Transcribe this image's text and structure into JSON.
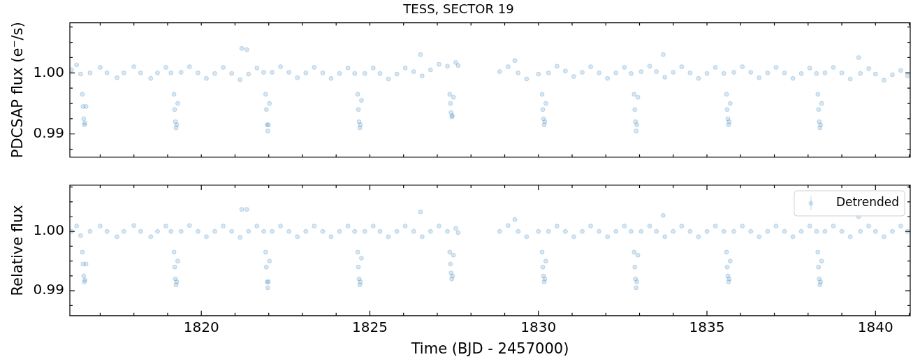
{
  "chart_data": [
    {
      "type": "scatter",
      "title": "TESS, SECTOR 19",
      "ylabel": "PDCSAP flux (e⁻/s)",
      "marker": "circle",
      "tick_labels": "y",
      "xlim": [
        1816.1,
        1841.03
      ],
      "xticks": [
        {
          "value": 1817,
          "label": null
        },
        {
          "value": 1818,
          "label": null
        },
        {
          "value": 1819,
          "label": null
        },
        {
          "value": 1820,
          "label": null
        },
        {
          "value": 1821,
          "label": null
        },
        {
          "value": 1822,
          "label": null
        },
        {
          "value": 1823,
          "label": null
        },
        {
          "value": 1824,
          "label": null
        },
        {
          "value": 1825,
          "label": null
        },
        {
          "value": 1826,
          "label": null
        },
        {
          "value": 1827,
          "label": null
        },
        {
          "value": 1828,
          "label": null
        },
        {
          "value": 1829,
          "label": null
        },
        {
          "value": 1830,
          "label": null
        },
        {
          "value": 1831,
          "label": null
        },
        {
          "value": 1832,
          "label": null
        },
        {
          "value": 1833,
          "label": null
        },
        {
          "value": 1834,
          "label": null
        },
        {
          "value": 1835,
          "label": null
        },
        {
          "value": 1836,
          "label": null
        },
        {
          "value": 1837,
          "label": null
        },
        {
          "value": 1838,
          "label": null
        },
        {
          "value": 1839,
          "label": null
        },
        {
          "value": 1840,
          "label": null
        },
        {
          "value": 1841,
          "label": null
        }
      ],
      "ylim": [
        0.9862,
        1.0082
      ],
      "yticks": [
        {
          "value": 0.9875,
          "label": null
        },
        0.99,
        {
          "value": 0.9925,
          "label": null
        },
        {
          "value": 0.995,
          "label": null
        },
        {
          "value": 0.9975,
          "label": null
        },
        {
          "value": 1,
          "label": "1.00"
        },
        {
          "value": 1.0025,
          "label": null
        },
        {
          "value": 1.005,
          "label": null
        },
        {
          "value": 1.0075,
          "label": null
        }
      ],
      "x": [
        1816.15,
        1816.3,
        1816.42,
        1816.47,
        1816.49,
        1816.51,
        1816.53,
        1816.55,
        1816.58,
        1816.7,
        1817.0,
        1817.2,
        1817.5,
        1817.7,
        1818.0,
        1818.2,
        1818.5,
        1818.7,
        1818.95,
        1819.1,
        1819.19,
        1819.21,
        1819.23,
        1819.25,
        1819.27,
        1819.3,
        1819.4,
        1819.65,
        1819.9,
        1820.15,
        1820.4,
        1820.65,
        1820.9,
        1821.15,
        1821.2,
        1821.35,
        1821.4,
        1821.65,
        1821.85,
        1821.91,
        1821.93,
        1821.95,
        1821.97,
        1821.99,
        1822.02,
        1822.1,
        1822.35,
        1822.6,
        1822.85,
        1823.1,
        1823.35,
        1823.6,
        1823.85,
        1824.1,
        1824.35,
        1824.55,
        1824.64,
        1824.66,
        1824.68,
        1824.7,
        1824.72,
        1824.75,
        1824.85,
        1825.1,
        1825.3,
        1825.55,
        1825.8,
        1826.05,
        1826.3,
        1826.5,
        1826.55,
        1826.8,
        1827.05,
        1827.3,
        1827.37,
        1827.39,
        1827.41,
        1827.43,
        1827.45,
        1827.48,
        1827.55,
        1827.62,
        1828.85,
        1829.1,
        1829.3,
        1829.4,
        1829.65,
        1830.0,
        1830.11,
        1830.13,
        1830.15,
        1830.17,
        1830.19,
        1830.22,
        1830.3,
        1830.55,
        1830.8,
        1831.05,
        1831.3,
        1831.55,
        1831.8,
        1832.05,
        1832.3,
        1832.55,
        1832.75,
        1832.84,
        1832.86,
        1832.88,
        1832.9,
        1832.92,
        1832.95,
        1833.05,
        1833.3,
        1833.5,
        1833.7,
        1833.75,
        1834.0,
        1834.25,
        1834.5,
        1834.75,
        1835.0,
        1835.25,
        1835.5,
        1835.58,
        1835.6,
        1835.62,
        1835.64,
        1835.66,
        1835.69,
        1835.8,
        1836.05,
        1836.3,
        1836.55,
        1836.8,
        1837.05,
        1837.3,
        1837.55,
        1837.8,
        1838.05,
        1838.25,
        1838.29,
        1838.31,
        1838.33,
        1838.35,
        1838.37,
        1838.4,
        1838.5,
        1838.75,
        1839.0,
        1839.25,
        1839.5,
        1839.55,
        1839.8,
        1840.0,
        1840.25,
        1840.5,
        1840.75,
        1840.95
      ],
      "series": [
        {
          "color": "#1f77b4",
          "values": [
            1.0005,
            1.0013,
            0.9998,
            0.9965,
            0.9945,
            0.9925,
            0.9915,
            0.9918,
            0.9945,
            1.0,
            1.0009,
            1.0,
            0.9992,
            1.0,
            1.001,
            1.0,
            0.9991,
            1.0,
            1.0009,
            1.0,
            0.9965,
            0.994,
            0.992,
            0.991,
            0.9915,
            0.995,
            1.0001,
            1.001,
            1.0,
            0.9991,
            0.9999,
            1.0009,
            0.9999,
            0.9989,
            1.004,
            1.0038,
            0.9998,
            1.0008,
            1.0001,
            0.9965,
            0.994,
            0.9915,
            0.9905,
            0.9915,
            0.995,
            1.0001,
            1.001,
            1.0001,
            0.9992,
            1.0,
            1.0009,
            1.0,
            0.9991,
            0.9999,
            1.0008,
            0.9999,
            0.9965,
            0.994,
            0.992,
            0.991,
            0.9915,
            0.9955,
            0.9999,
            1.0008,
            0.9999,
            0.999,
            0.9998,
            1.0008,
            1.0002,
            1.003,
            0.9995,
            1.0005,
            1.0014,
            1.0011,
            0.9965,
            0.995,
            0.9935,
            0.9928,
            0.993,
            0.996,
            1.0017,
            1.0012,
            1.0002,
            1.001,
            1.002,
            1.0,
            0.999,
            0.9998,
            0.9965,
            0.994,
            0.9925,
            0.9915,
            0.992,
            0.995,
            1.0,
            1.0011,
            1.0003,
            0.9994,
            1.0001,
            1.001,
            1.0,
            0.9991,
            1.0,
            1.0009,
            0.9999,
            0.9965,
            0.994,
            0.992,
            0.9905,
            0.9915,
            0.996,
            1.0002,
            1.0011,
            1.0002,
            1.003,
            0.9993,
            1.0001,
            1.001,
            1.0,
            0.9991,
            0.9999,
            1.0009,
            0.9999,
            0.9965,
            0.994,
            0.9925,
            0.9915,
            0.992,
            0.995,
            1.0001,
            1.001,
            1.0001,
            0.9992,
            1.0,
            1.0009,
            1.0,
            0.9991,
            0.9999,
            1.0008,
            0.9999,
            0.9965,
            0.994,
            0.992,
            0.991,
            0.9915,
            0.995,
            1.0,
            1.0009,
            1.0,
            0.999,
            1.0025,
            0.9999,
            1.0007,
            0.9998,
            0.9988,
            0.9997,
            1.0004,
            0.9995
          ]
        }
      ]
    },
    {
      "type": "scatter",
      "xlabel": "Time (BJD - 2457000)",
      "ylabel": "Relative flux",
      "marker": "circle",
      "legend": "top right",
      "xlim": [
        1816.1,
        1841.03
      ],
      "xticks": [
        {
          "value": 1817,
          "label": null
        },
        {
          "value": 1818,
          "label": null
        },
        {
          "value": 1819,
          "label": null
        },
        1820,
        {
          "value": 1821,
          "label": null
        },
        {
          "value": 1822,
          "label": null
        },
        {
          "value": 1823,
          "label": null
        },
        {
          "value": 1824,
          "label": null
        },
        1825,
        {
          "value": 1826,
          "label": null
        },
        {
          "value": 1827,
          "label": null
        },
        {
          "value": 1828,
          "label": null
        },
        {
          "value": 1829,
          "label": null
        },
        1830,
        {
          "value": 1831,
          "label": null
        },
        {
          "value": 1832,
          "label": null
        },
        {
          "value": 1833,
          "label": null
        },
        {
          "value": 1834,
          "label": null
        },
        1835,
        {
          "value": 1836,
          "label": null
        },
        {
          "value": 1837,
          "label": null
        },
        {
          "value": 1838,
          "label": null
        },
        {
          "value": 1839,
          "label": null
        },
        1840,
        {
          "value": 1841,
          "label": null
        }
      ],
      "ylim": [
        0.9858,
        1.0078
      ],
      "yticks": [
        {
          "value": 0.9875,
          "label": null
        },
        0.99,
        {
          "value": 0.9925,
          "label": null
        },
        {
          "value": 0.995,
          "label": null
        },
        {
          "value": 0.9975,
          "label": null
        },
        {
          "value": 1,
          "label": "1.00"
        },
        {
          "value": 1.0025,
          "label": null
        },
        {
          "value": 1.005,
          "label": null
        },
        {
          "value": 1.0075,
          "label": null
        }
      ],
      "x": [
        1816.15,
        1816.3,
        1816.42,
        1816.47,
        1816.49,
        1816.51,
        1816.53,
        1816.55,
        1816.58,
        1816.7,
        1817.0,
        1817.2,
        1817.5,
        1817.7,
        1818.0,
        1818.2,
        1818.5,
        1818.7,
        1818.95,
        1819.1,
        1819.19,
        1819.21,
        1819.23,
        1819.25,
        1819.27,
        1819.3,
        1819.4,
        1819.65,
        1819.9,
        1820.15,
        1820.4,
        1820.65,
        1820.9,
        1821.15,
        1821.2,
        1821.35,
        1821.4,
        1821.65,
        1821.85,
        1821.91,
        1821.93,
        1821.95,
        1821.97,
        1821.99,
        1822.02,
        1822.1,
        1822.35,
        1822.6,
        1822.85,
        1823.1,
        1823.35,
        1823.6,
        1823.85,
        1824.1,
        1824.35,
        1824.55,
        1824.64,
        1824.66,
        1824.68,
        1824.7,
        1824.72,
        1824.75,
        1824.85,
        1825.1,
        1825.3,
        1825.55,
        1825.8,
        1826.05,
        1826.3,
        1826.5,
        1826.55,
        1826.8,
        1827.05,
        1827.3,
        1827.37,
        1827.39,
        1827.41,
        1827.43,
        1827.45,
        1827.48,
        1827.55,
        1827.62,
        1828.85,
        1829.1,
        1829.3,
        1829.4,
        1829.65,
        1830.0,
        1830.11,
        1830.13,
        1830.15,
        1830.17,
        1830.19,
        1830.22,
        1830.3,
        1830.55,
        1830.8,
        1831.05,
        1831.3,
        1831.55,
        1831.8,
        1832.05,
        1832.3,
        1832.55,
        1832.75,
        1832.84,
        1832.86,
        1832.88,
        1832.9,
        1832.92,
        1832.95,
        1833.05,
        1833.3,
        1833.5,
        1833.7,
        1833.75,
        1834.0,
        1834.25,
        1834.5,
        1834.75,
        1835.0,
        1835.25,
        1835.5,
        1835.58,
        1835.6,
        1835.62,
        1835.64,
        1835.66,
        1835.69,
        1835.8,
        1836.05,
        1836.3,
        1836.55,
        1836.8,
        1837.05,
        1837.3,
        1837.55,
        1837.8,
        1838.05,
        1838.25,
        1838.29,
        1838.31,
        1838.33,
        1838.35,
        1838.37,
        1838.4,
        1838.5,
        1838.75,
        1839.0,
        1839.25,
        1839.5,
        1839.55,
        1839.8,
        1840.0,
        1840.25,
        1840.5,
        1840.75,
        1840.95
      ],
      "series": [
        {
          "name": "Detrended",
          "color": "#1f77b4",
          "values": [
            1.0,
            1.0009,
            0.9993,
            0.9965,
            0.9945,
            0.9925,
            0.9915,
            0.9918,
            0.9945,
            1.0,
            1.0009,
            1.0,
            0.9991,
            1.0,
            1.001,
            1.0,
            0.9991,
            1.0,
            1.0009,
            1.0,
            0.9965,
            0.994,
            0.992,
            0.991,
            0.9915,
            0.995,
            1.0,
            1.001,
            1.0,
            0.9991,
            1.0,
            1.0009,
            1.0,
            0.999,
            1.0037,
            1.0037,
            1.0,
            1.0009,
            1.0,
            0.9965,
            0.994,
            0.9915,
            0.9905,
            0.9915,
            0.995,
            1.0,
            1.0009,
            1.0,
            0.9991,
            1.0,
            1.0009,
            1.0,
            0.9991,
            1.0,
            1.0009,
            1.0,
            0.9965,
            0.994,
            0.992,
            0.991,
            0.9915,
            0.9955,
            1.0,
            1.0009,
            1.0,
            0.9991,
            1.0,
            1.0009,
            1.0,
            1.0033,
            0.9991,
            1.0,
            1.0009,
            1.0,
            0.9965,
            0.9945,
            0.993,
            0.992,
            0.9925,
            0.996,
            1.0005,
            0.9998,
            1.0,
            1.001,
            1.002,
            1.0,
            0.9991,
            1.0,
            0.9965,
            0.994,
            0.9925,
            0.9915,
            0.992,
            0.995,
            1.0,
            1.0009,
            1.0,
            0.9991,
            1.0,
            1.0009,
            1.0,
            0.9991,
            1.0,
            1.0009,
            1.0,
            0.9965,
            0.994,
            0.992,
            0.9905,
            0.9915,
            0.996,
            1.0,
            1.0009,
            1.0,
            1.0027,
            0.9991,
            1.0,
            1.0009,
            1.0,
            0.9991,
            1.0,
            1.0009,
            1.0,
            0.9965,
            0.994,
            0.9925,
            0.9915,
            0.992,
            0.995,
            1.0,
            1.0009,
            1.0,
            0.9991,
            1.0,
            1.0009,
            1.0,
            0.9991,
            1.0,
            1.0009,
            1.0,
            0.9965,
            0.994,
            0.992,
            0.991,
            0.9915,
            0.995,
            1.0,
            1.0009,
            1.0,
            0.9991,
            1.0025,
            1.0,
            1.0009,
            1.0,
            0.9991,
            1.0,
            1.0009,
            1.0
          ]
        }
      ]
    }
  ]
}
